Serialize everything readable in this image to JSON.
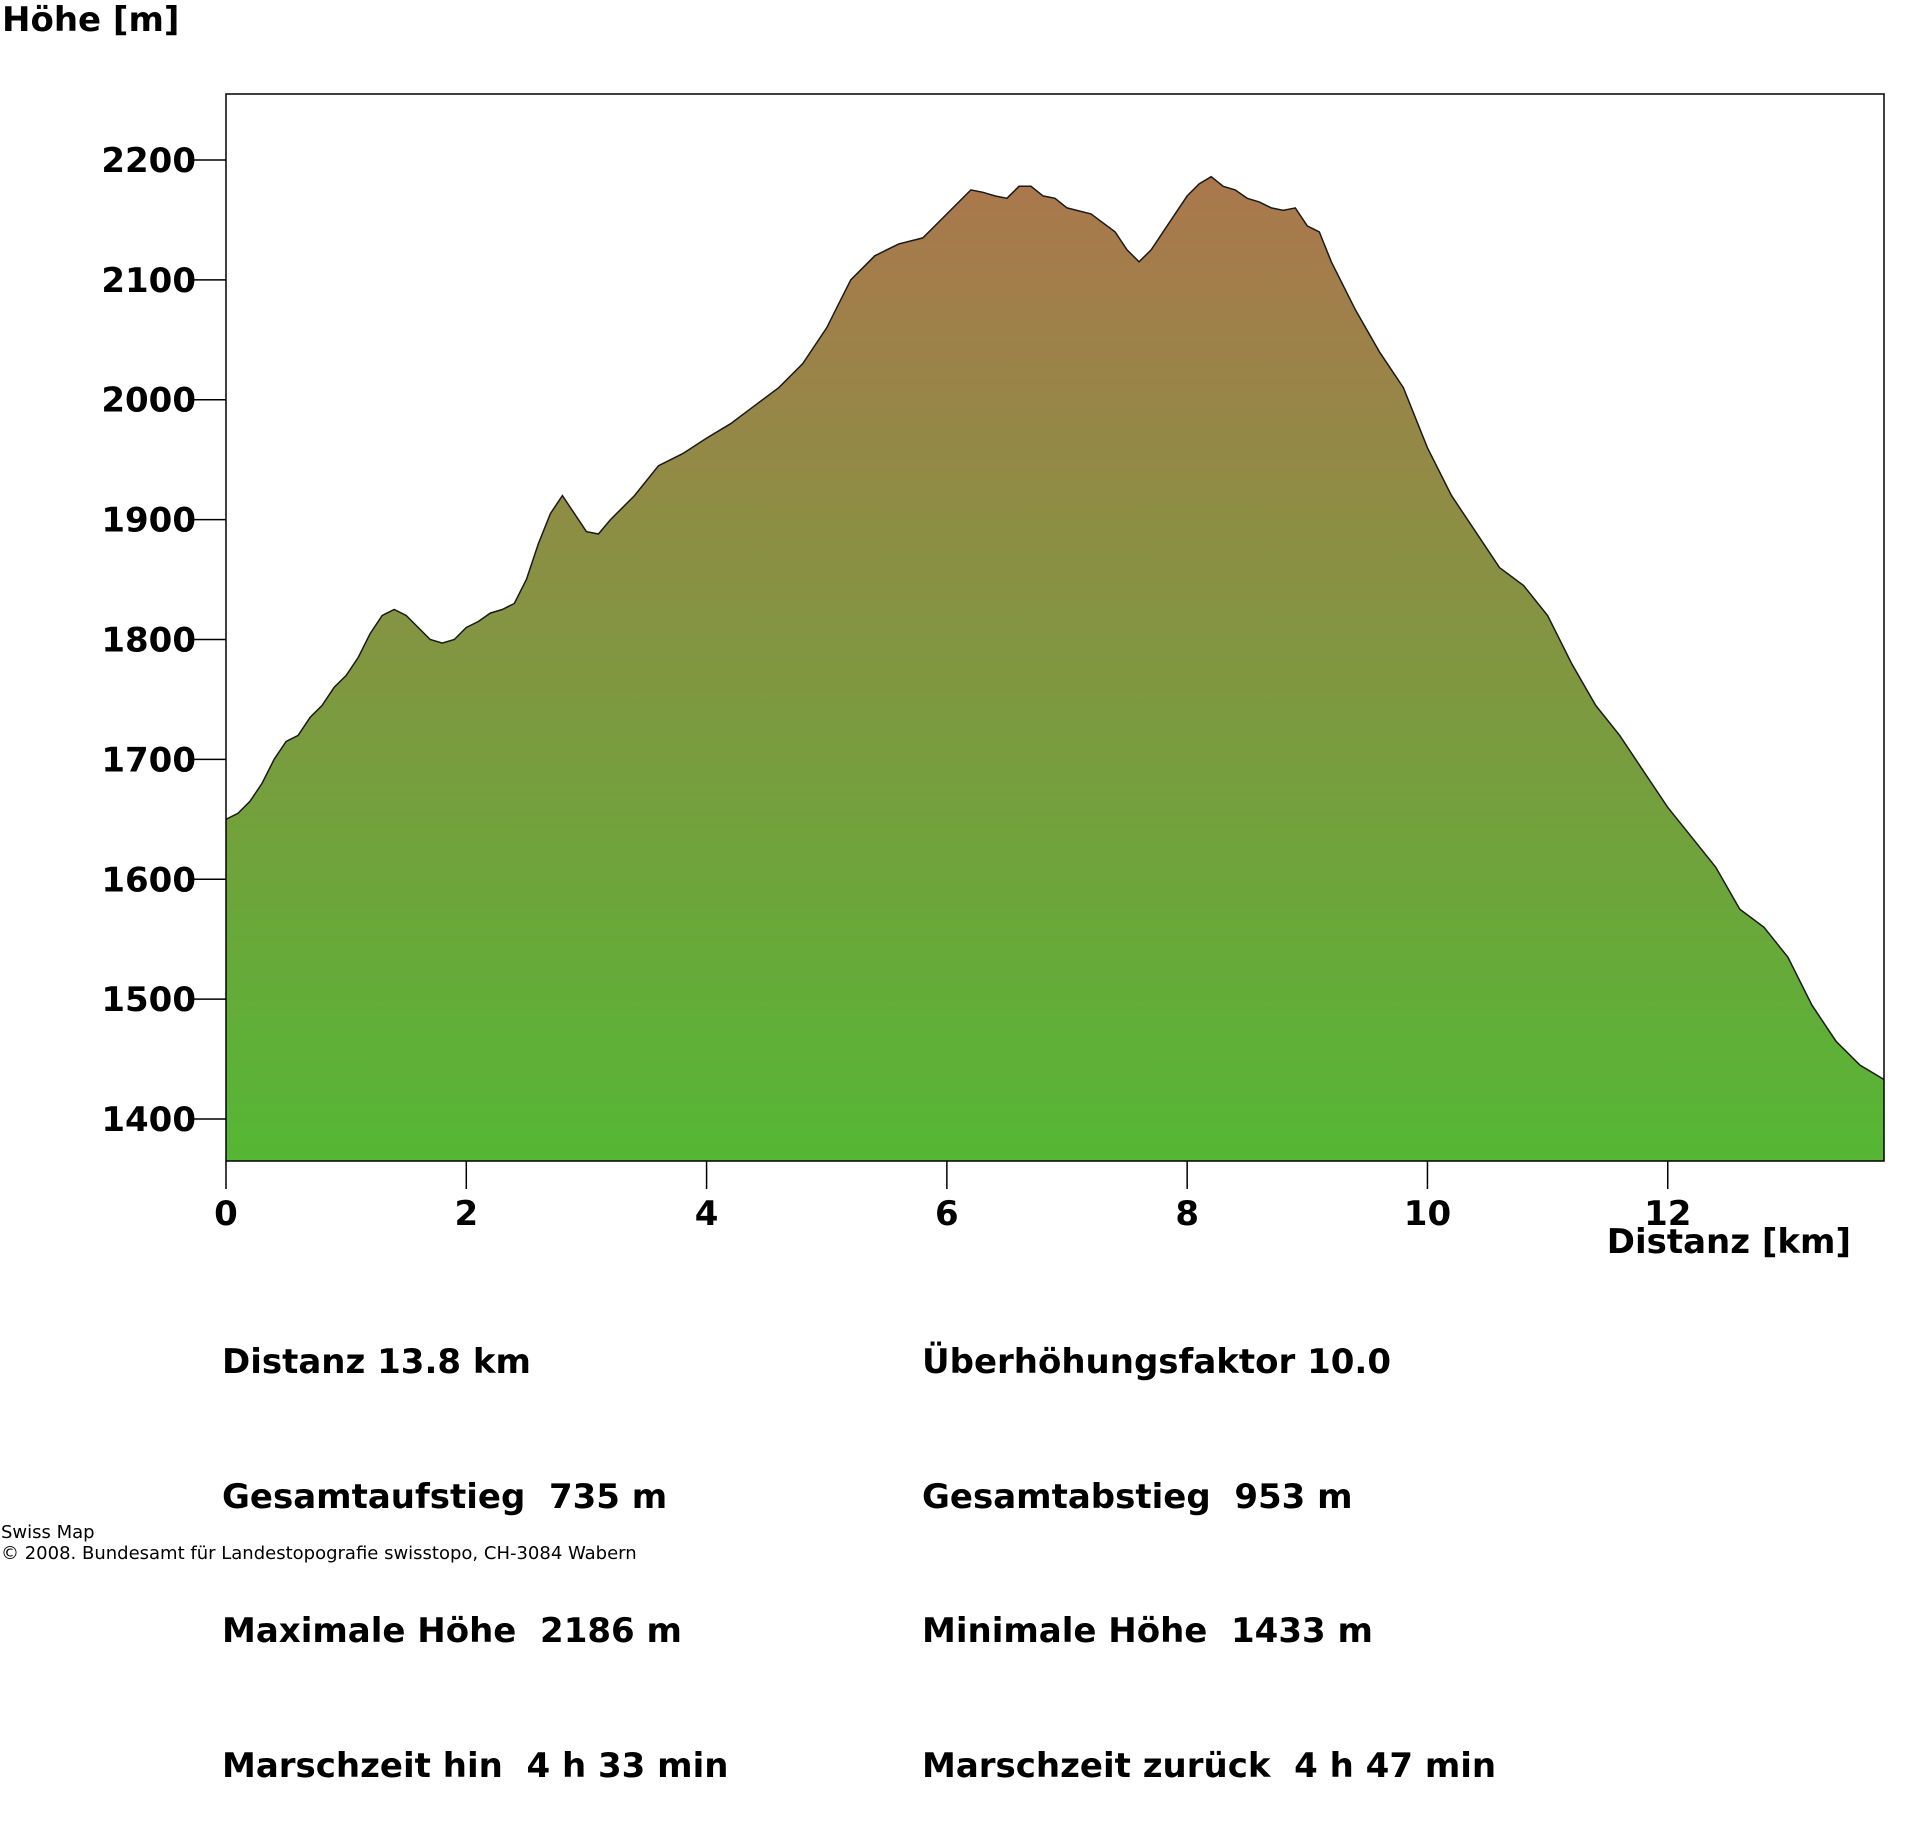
{
  "chart_data": {
    "type": "area",
    "title": "",
    "ylabel": "Höhe [m]",
    "xlabel": "Distanz [km]",
    "xlim": [
      0,
      13.8
    ],
    "ylim": [
      1365,
      2255
    ],
    "xticks": [
      0,
      2,
      4,
      6,
      8,
      10,
      12
    ],
    "yticks": [
      1400,
      1500,
      1600,
      1700,
      1800,
      1900,
      2000,
      2100,
      2200
    ],
    "grid": false,
    "fill_gradient": {
      "bottom": "#55b734",
      "top": "#ab774d"
    },
    "line_color": "#1a1a1a",
    "series": [
      {
        "x": [
          0,
          0.1,
          0.2,
          0.3,
          0.4,
          0.5,
          0.6,
          0.7,
          0.8,
          0.9,
          1.0,
          1.1,
          1.2,
          1.3,
          1.4,
          1.5,
          1.6,
          1.7,
          1.8,
          1.9,
          2.0,
          2.1,
          2.2,
          2.3,
          2.4,
          2.5,
          2.6,
          2.7,
          2.8,
          2.9,
          3.0,
          3.1,
          3.2,
          3.4,
          3.6,
          3.8,
          4.0,
          4.2,
          4.4,
          4.6,
          4.8,
          5.0,
          5.1,
          5.2,
          5.3,
          5.4,
          5.6,
          5.8,
          5.9,
          6.0,
          6.1,
          6.2,
          6.3,
          6.4,
          6.5,
          6.6,
          6.7,
          6.8,
          6.9,
          7.0,
          7.2,
          7.4,
          7.5,
          7.6,
          7.7,
          7.8,
          7.9,
          8.0,
          8.1,
          8.2,
          8.3,
          8.4,
          8.5,
          8.6,
          8.7,
          8.8,
          8.9,
          9.0,
          9.1,
          9.2,
          9.4,
          9.6,
          9.8,
          10.0,
          10.2,
          10.4,
          10.6,
          10.8,
          11.0,
          11.2,
          11.4,
          11.6,
          11.8,
          12.0,
          12.2,
          12.4,
          12.6,
          12.8,
          13.0,
          13.2,
          13.4,
          13.6,
          13.8
        ],
        "y": [
          1650,
          1655,
          1665,
          1680,
          1700,
          1715,
          1720,
          1735,
          1745,
          1760,
          1770,
          1785,
          1805,
          1820,
          1825,
          1820,
          1810,
          1800,
          1797,
          1800,
          1810,
          1815,
          1822,
          1825,
          1830,
          1850,
          1880,
          1905,
          1920,
          1905,
          1890,
          1888,
          1900,
          1920,
          1945,
          1955,
          1968,
          1980,
          1995,
          2010,
          2030,
          2060,
          2080,
          2100,
          2110,
          2120,
          2130,
          2135,
          2145,
          2155,
          2165,
          2175,
          2173,
          2170,
          2168,
          2178,
          2178,
          2170,
          2168,
          2160,
          2155,
          2140,
          2125,
          2115,
          2125,
          2140,
          2155,
          2170,
          2180,
          2186,
          2178,
          2175,
          2168,
          2165,
          2160,
          2158,
          2160,
          2145,
          2140,
          2115,
          2075,
          2040,
          2010,
          1960,
          1920,
          1890,
          1860,
          1845,
          1820,
          1780,
          1745,
          1720,
          1690,
          1660,
          1635,
          1610,
          1575,
          1560,
          1535,
          1495,
          1465,
          1445,
          1433
        ]
      }
    ],
    "stats_left": [
      "Distanz 13.8 km",
      "Gesamtaufstieg  735 m",
      "Maximale Höhe  2186 m",
      "Marschzeit hin  4 h 33 min"
    ],
    "stats_right": [
      "Überhöhungsfaktor 10.0",
      "Gesamtabstieg  953 m",
      "Minimale Höhe  1433 m",
      "Marschzeit zurück  4 h 47 min"
    ]
  },
  "footer": {
    "line1": "Swiss Map",
    "line2": "© 2008. Bundesamt für Landestopografie swisstopo, CH-3084 Wabern"
  }
}
